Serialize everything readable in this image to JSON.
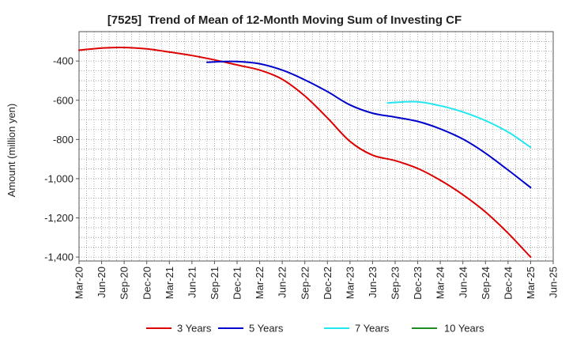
{
  "chart_data": {
    "type": "line",
    "title": "[7525]  Trend of Mean of 12-Month Moving Sum of Investing CF",
    "ylabel": "Amount (million yen)",
    "ylim": [
      -1420,
      -250
    ],
    "xlim": [
      "Mar-20",
      "Jun-25"
    ],
    "grid": true,
    "legend": "bottom",
    "x_ticks": [
      "Mar-20",
      "Jun-20",
      "Sep-20",
      "Dec-20",
      "Mar-21",
      "Jun-21",
      "Sep-21",
      "Dec-21",
      "Mar-22",
      "Jun-22",
      "Sep-22",
      "Dec-22",
      "Mar-23",
      "Jun-23",
      "Sep-23",
      "Dec-23",
      "Mar-24",
      "Jun-24",
      "Sep-24",
      "Dec-24",
      "Mar-25",
      "Jun-25"
    ],
    "y_ticks": [
      {
        "value": -400,
        "label": "-400"
      },
      {
        "value": -600,
        "label": "-600"
      },
      {
        "value": -800,
        "label": "-800"
      },
      {
        "value": -1000,
        "label": "-1,000"
      },
      {
        "value": -1200,
        "label": "-1,200"
      },
      {
        "value": -1400,
        "label": "-1,400"
      }
    ],
    "series": [
      {
        "name": "3 Years",
        "color": "#dd0000",
        "x": [
          "Mar-20",
          "Jun-20",
          "Sep-20",
          "Dec-20",
          "Mar-21",
          "Jun-21",
          "Sep-21",
          "Dec-21",
          "Mar-22",
          "Jun-22",
          "Sep-22",
          "Dec-22",
          "Mar-23",
          "Jun-23",
          "Sep-23",
          "Dec-23",
          "Mar-24",
          "Jun-24",
          "Sep-24",
          "Dec-24",
          "Mar-25"
        ],
        "values": [
          -345,
          -334,
          -331,
          -338,
          -354,
          -372,
          -394,
          -420,
          -446,
          -493,
          -578,
          -690,
          -810,
          -880,
          -908,
          -948,
          -1008,
          -1082,
          -1170,
          -1278,
          -1400
        ]
      },
      {
        "name": "5 Years",
        "color": "#0000cc",
        "x": [
          "Aug-21",
          "Sep-21",
          "Dec-21",
          "Mar-22",
          "Jun-22",
          "Sep-22",
          "Dec-22",
          "Mar-23",
          "Jun-23",
          "Sep-23",
          "Dec-23",
          "Mar-24",
          "Jun-24",
          "Sep-24",
          "Dec-24",
          "Mar-25"
        ],
        "values": [
          -406,
          -404,
          -402,
          -414,
          -446,
          -496,
          -556,
          -624,
          -666,
          -686,
          -708,
          -746,
          -798,
          -870,
          -956,
          -1045
        ]
      },
      {
        "name": "7 Years",
        "color": "#22e6f0",
        "x": [
          "Aug-23",
          "Sep-23",
          "Dec-23",
          "Mar-24",
          "Jun-24",
          "Sep-24",
          "Dec-24",
          "Mar-25"
        ],
        "values": [
          -614,
          -611,
          -608,
          -628,
          -660,
          -704,
          -762,
          -840
        ]
      },
      {
        "name": "10 Years",
        "color": "#1e8c1e",
        "x": [],
        "values": []
      }
    ]
  }
}
